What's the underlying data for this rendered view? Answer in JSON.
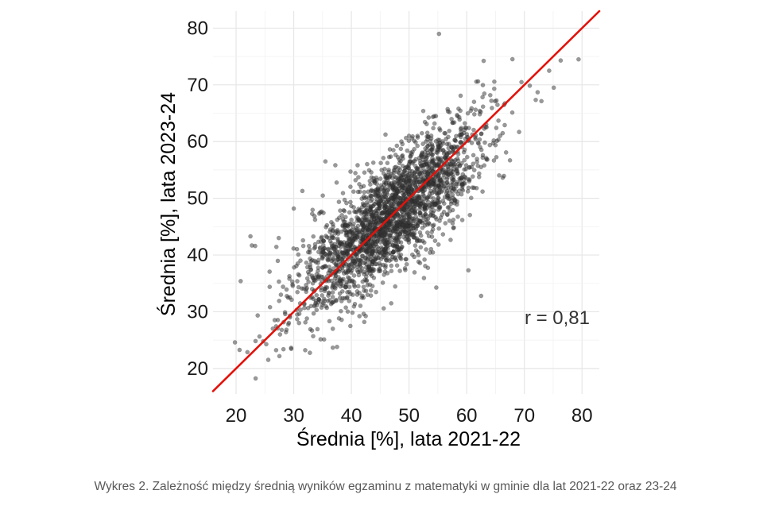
{
  "chart_data": {
    "type": "scatter",
    "title": "",
    "xlabel": "Średnia [%], lata 2021-22",
    "ylabel": "Średnia [%], lata 2023-24",
    "xlim": [
      16,
      83
    ],
    "ylim": [
      15.5,
      83
    ],
    "x_ticks": [
      20,
      30,
      40,
      50,
      60,
      70,
      80
    ],
    "y_ticks": [
      20,
      30,
      40,
      50,
      60,
      70,
      80
    ],
    "grid": true,
    "annotation": "r = 0,81",
    "correlation": 0.81,
    "fit_line": {
      "slope": 1.0,
      "intercept": 0.0,
      "color": "#e3120b"
    },
    "point_color": "#333333",
    "point_count": 2477,
    "point_distribution": {
      "x_mean": 47,
      "x_sd": 8,
      "y_mean": 47,
      "y_sd": 8.2,
      "seed": 20242
    },
    "notable_points": [
      {
        "x": 19.8,
        "y": 24.6
      },
      {
        "x": 20.8,
        "y": 35.4
      },
      {
        "x": 22.5,
        "y": 43.3
      },
      {
        "x": 23.3,
        "y": 41.6
      },
      {
        "x": 24.7,
        "y": 24.8
      },
      {
        "x": 27.4,
        "y": 43.0
      },
      {
        "x": 30.0,
        "y": 48.2
      },
      {
        "x": 31.5,
        "y": 51.3
      },
      {
        "x": 35.5,
        "y": 56.5
      },
      {
        "x": 37.5,
        "y": 23.8
      },
      {
        "x": 55.2,
        "y": 79.0
      },
      {
        "x": 60.3,
        "y": 37.3
      },
      {
        "x": 62.5,
        "y": 32.8
      },
      {
        "x": 67.5,
        "y": 56.7
      },
      {
        "x": 69.5,
        "y": 70.5
      },
      {
        "x": 72.3,
        "y": 68.7
      },
      {
        "x": 74.3,
        "y": 72.5
      },
      {
        "x": 75.1,
        "y": 69.5
      },
      {
        "x": 76.3,
        "y": 74.3
      },
      {
        "x": 79.4,
        "y": 74.5
      }
    ]
  },
  "caption": "Wykres 2. Zależność między średnią wyników egzaminu z matematyki w gminie dla lat 2021-22 oraz 23-24"
}
